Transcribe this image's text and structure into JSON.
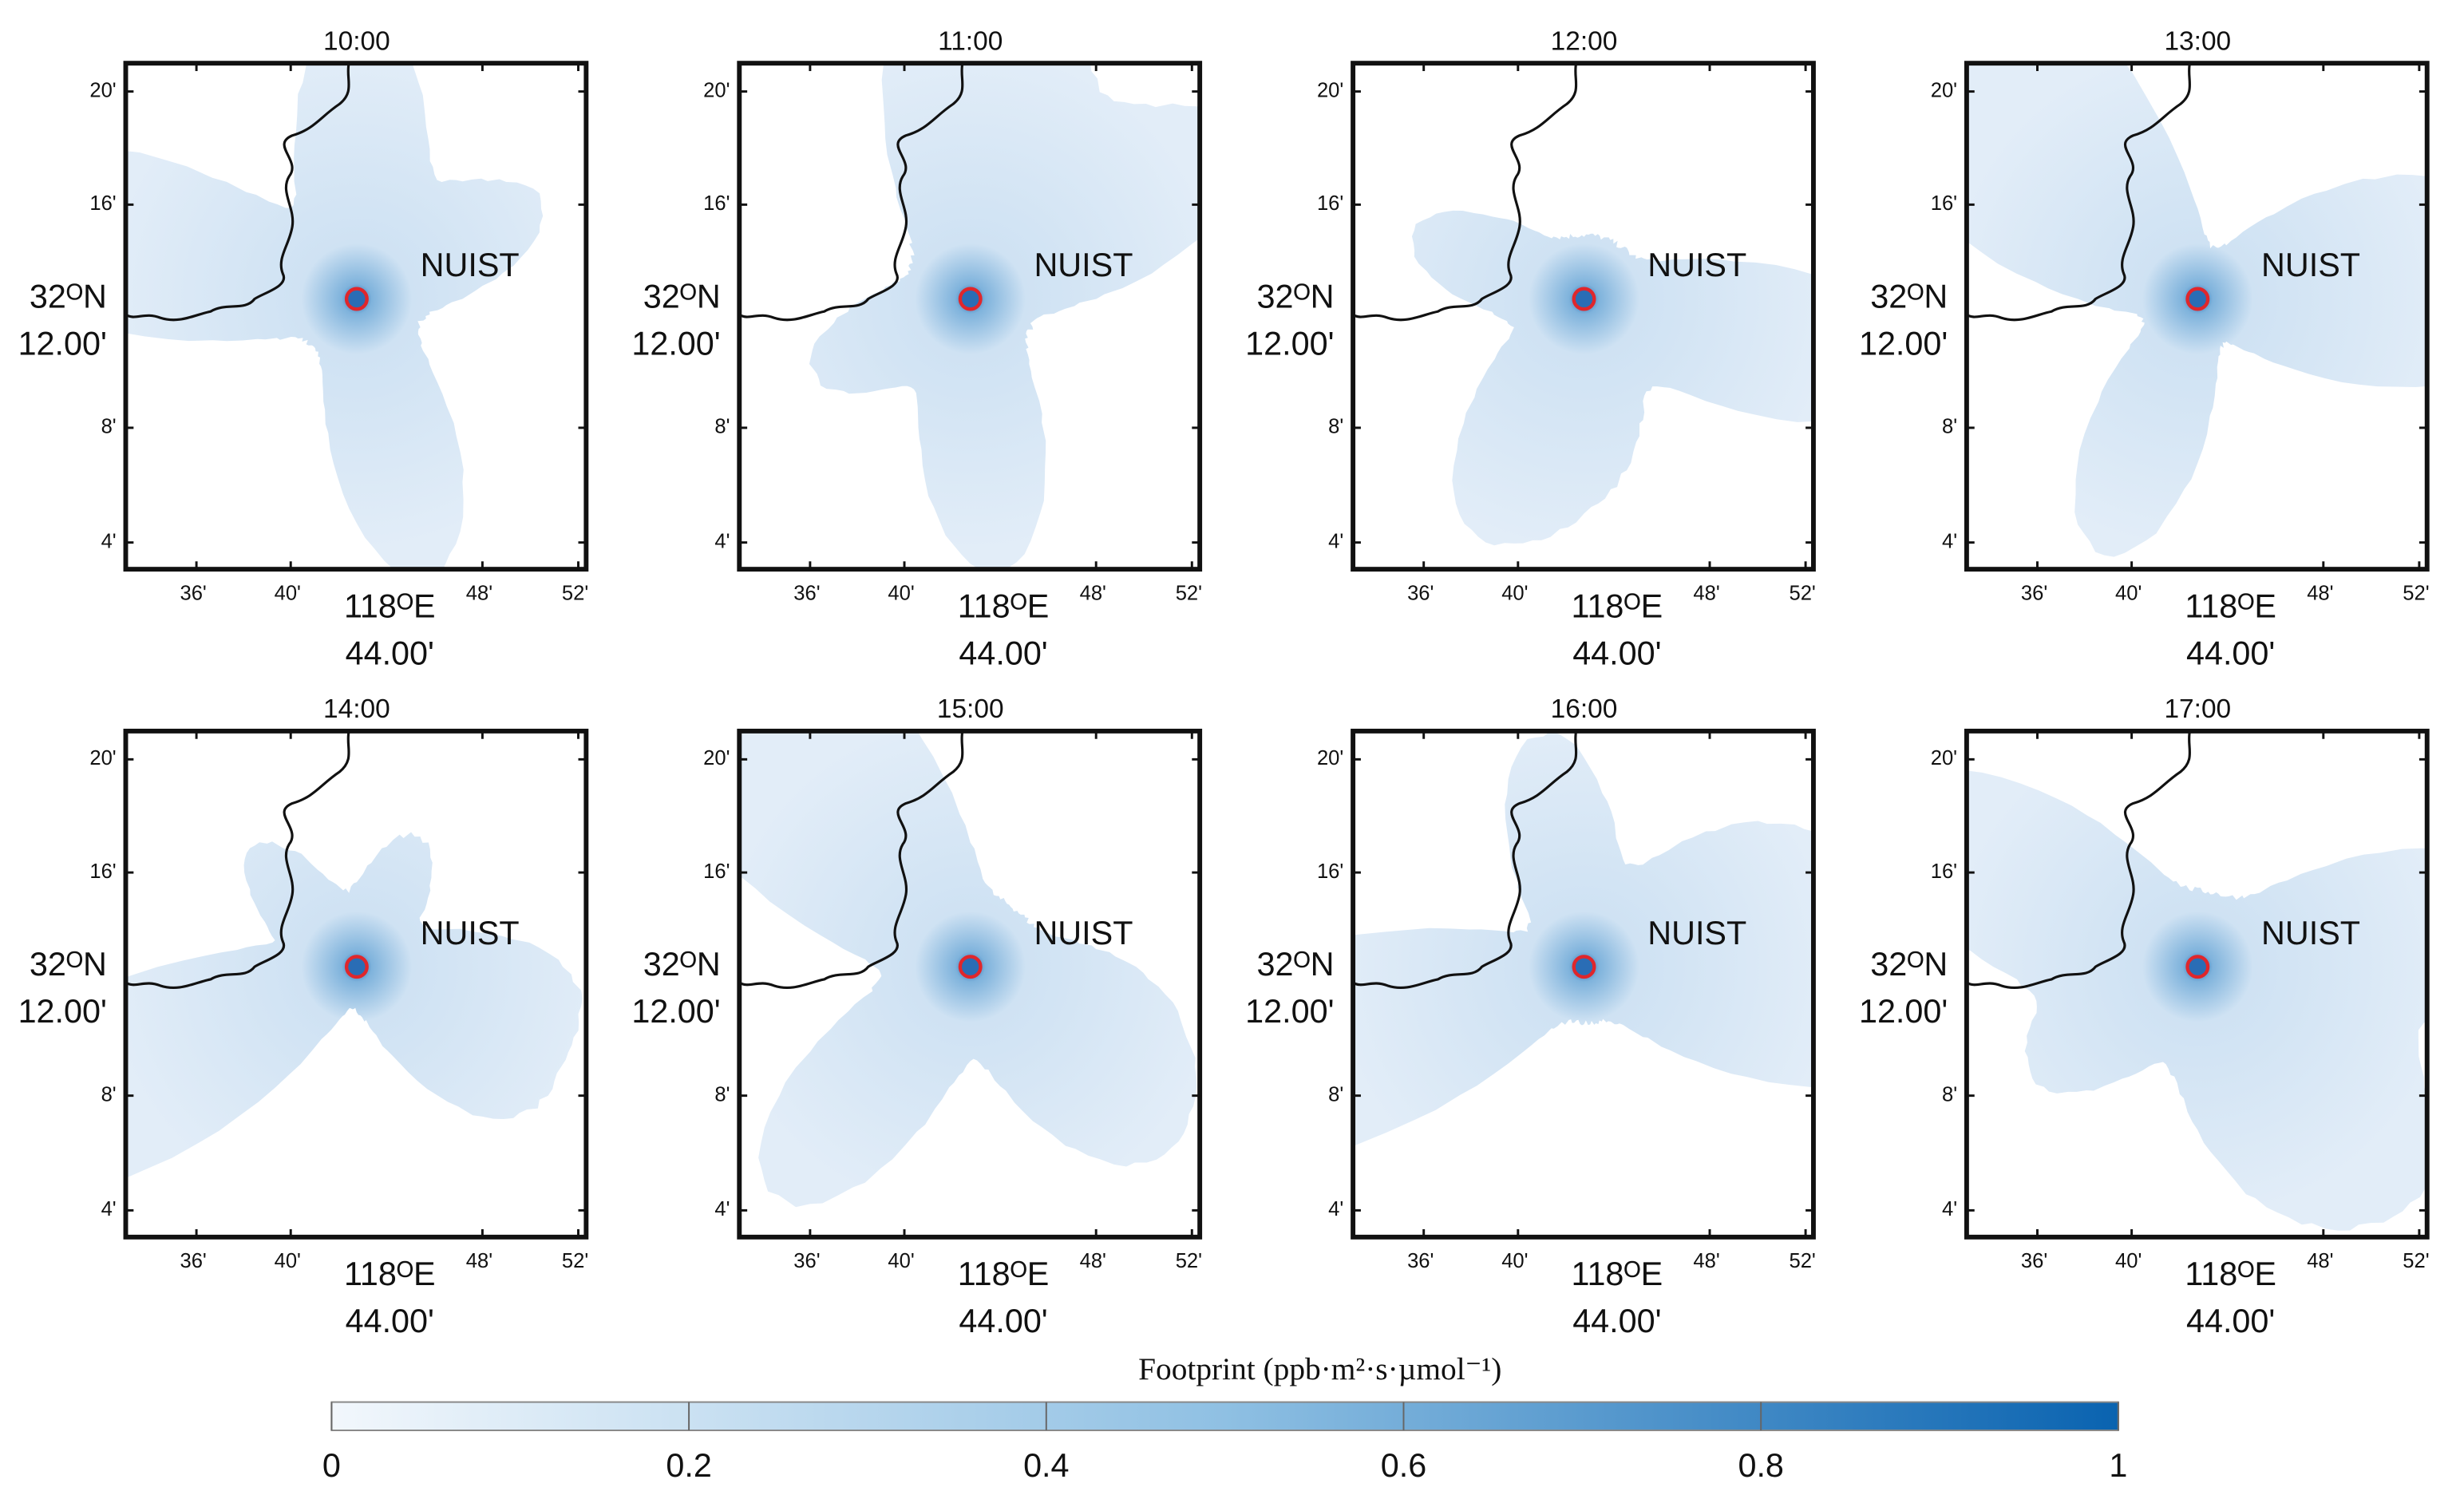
{
  "panels": [
    {
      "title": "10:00"
    },
    {
      "title": "11:00"
    },
    {
      "title": "12:00"
    },
    {
      "title": "13:00"
    },
    {
      "title": "14:00"
    },
    {
      "title": "15:00"
    },
    {
      "title": "16:00"
    },
    {
      "title": "17:00"
    }
  ],
  "axes": {
    "xticks": [
      "36'",
      "40'",
      "48'",
      "52'"
    ],
    "yticks": [
      "20'",
      "16'",
      "8'",
      "4'"
    ],
    "x_center": [
      "118ᴼE",
      "44.00'"
    ],
    "y_center": [
      "32ᴼN",
      "12.00'"
    ]
  },
  "site": "NUIST",
  "colorbar": {
    "title": "Footprint (ppb·m²·s·µmol⁻¹)",
    "lim": [
      0,
      1
    ],
    "ticks": [
      0,
      0.2,
      0.4,
      0.6,
      0.8,
      1
    ]
  }
}
